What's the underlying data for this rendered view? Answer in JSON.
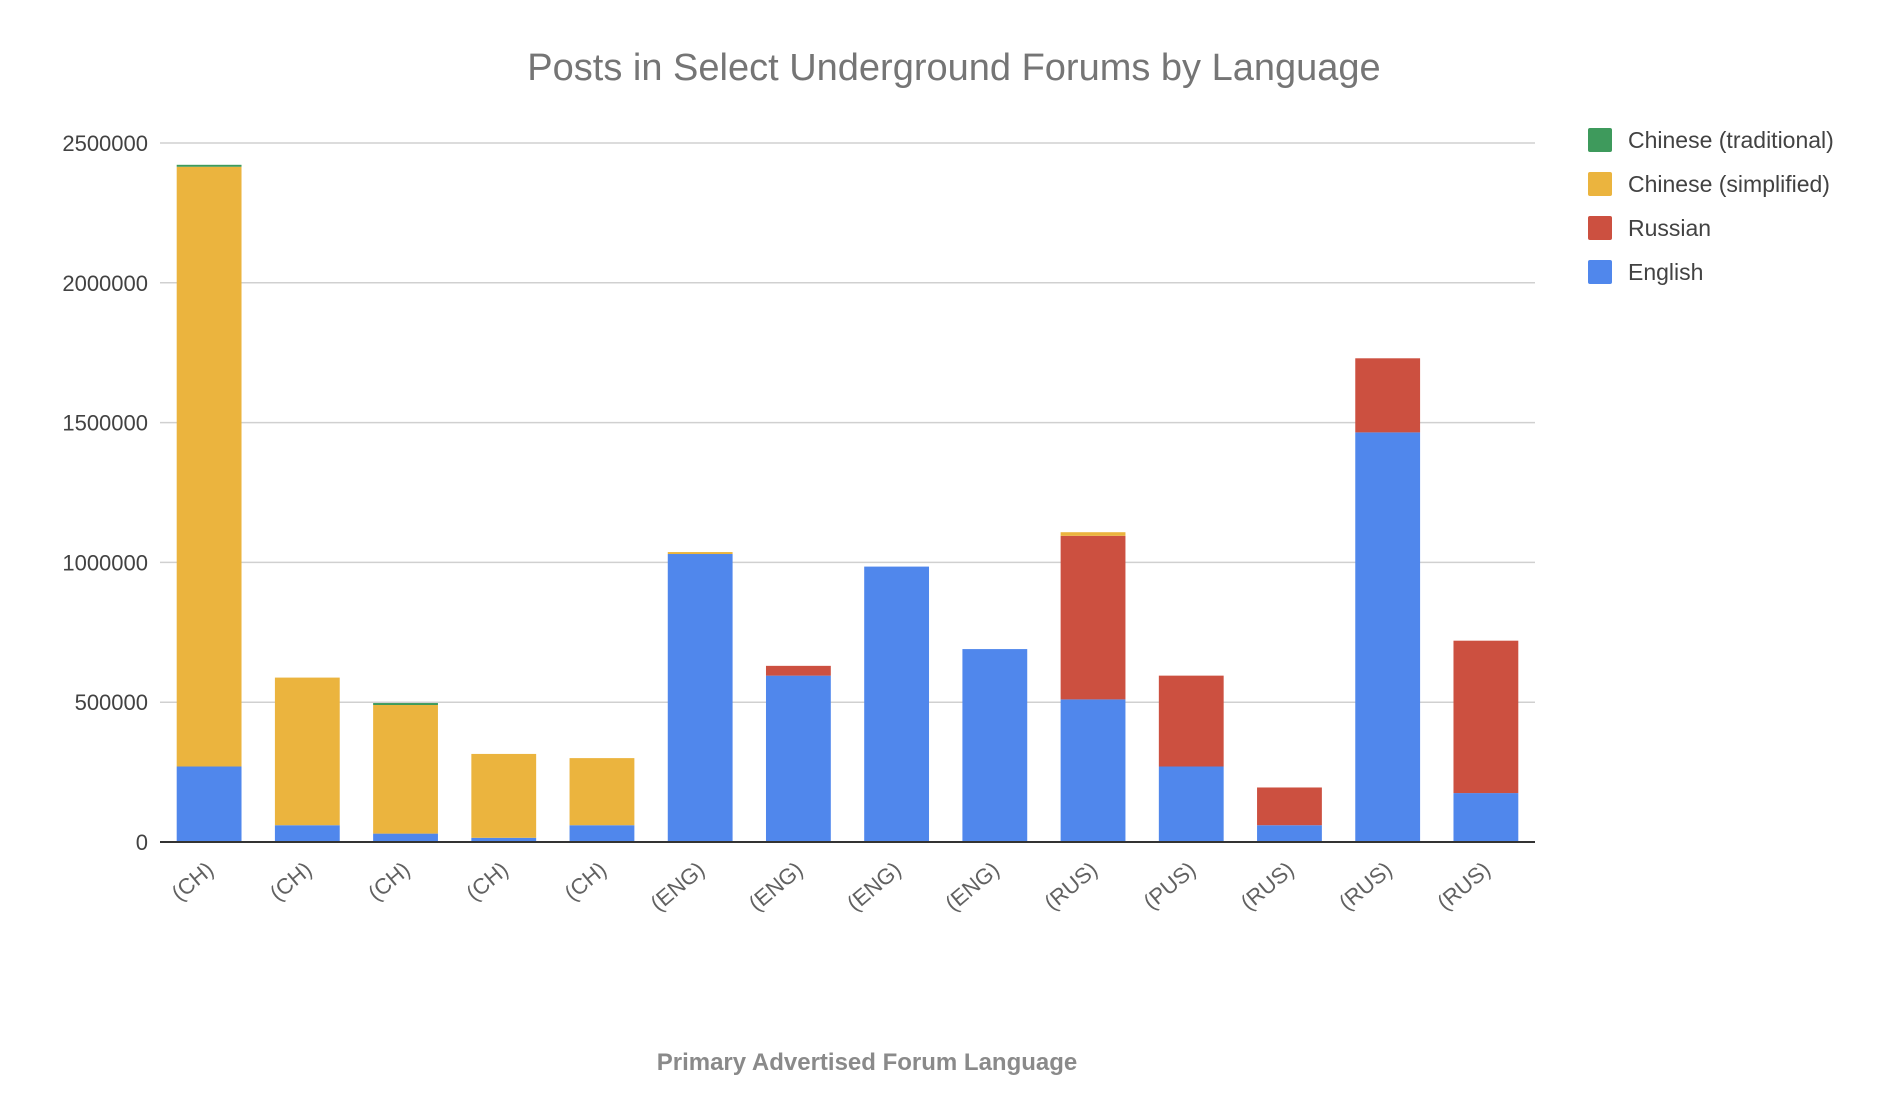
{
  "chart_data": {
    "type": "bar",
    "stacked": true,
    "title": "Posts in Select Underground Forums by Language",
    "xlabel": "Primary Advertised Forum Language",
    "ylabel": "",
    "ylim": [
      0,
      2500000
    ],
    "yticks": [
      0,
      500000,
      1000000,
      1500000,
      2000000,
      2500000
    ],
    "ytick_labels": [
      "0",
      "500000",
      "1000000",
      "1500000",
      "2000000",
      "2500000"
    ],
    "categories": [
      "(CH)",
      "(CH)",
      "(CH)",
      "(CH)",
      "(CH)",
      "(ENG)",
      "(ENG)",
      "(ENG)",
      "(ENG)",
      "(RUS)",
      "(PUS)",
      "(RUS)",
      "(RUS)",
      "(RUS)"
    ],
    "grid": true,
    "legend_position": "right",
    "series": [
      {
        "name": "English",
        "color": "#5087ec",
        "values": [
          270000,
          60000,
          30000,
          15000,
          60000,
          1030000,
          595000,
          985000,
          690000,
          510000,
          270000,
          60000,
          1465000,
          175000
        ]
      },
      {
        "name": "Russian",
        "color": "#cc5040",
        "values": [
          0,
          0,
          0,
          0,
          0,
          0,
          35000,
          0,
          0,
          585000,
          325000,
          135000,
          265000,
          545000
        ]
      },
      {
        "name": "Chinese (simplified)",
        "color": "#ebb43e",
        "values": [
          2145000,
          528000,
          460000,
          300000,
          240000,
          7000,
          0,
          0,
          0,
          13000,
          0,
          0,
          0,
          0
        ]
      },
      {
        "name": "Chinese (traditional)",
        "color": "#3e9a5c",
        "values": [
          7000,
          0,
          7000,
          0,
          0,
          0,
          0,
          0,
          0,
          0,
          0,
          0,
          0,
          0
        ]
      }
    ],
    "legend_order": [
      "Chinese (traditional)",
      "Chinese (simplified)",
      "Russian",
      "English"
    ]
  }
}
